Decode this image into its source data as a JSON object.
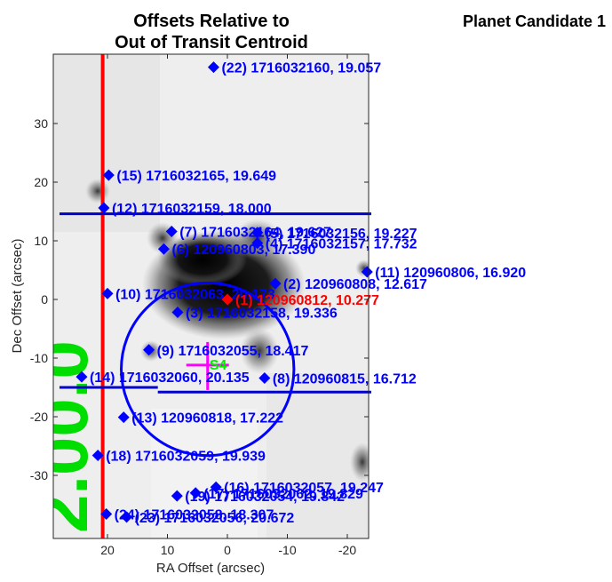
{
  "figure": {
    "title_line1": "Offsets Relative to",
    "title_line2": "Out of Transit Centroid",
    "candidate_label": "Planet Candidate 1"
  },
  "chart_data": {
    "type": "scatter",
    "title": "Offsets Relative to Out of Transit Centroid",
    "xlabel": "RA Offset (arcsec)",
    "ylabel": "Dec Offset (arcsec)",
    "xlim": [
      28,
      -24
    ],
    "ylim": [
      -40,
      40
    ],
    "x_reversed": true,
    "x_ticks": [
      20,
      10,
      0,
      -10,
      -20
    ],
    "x_tick_labels": [
      "20",
      "10",
      "0",
      "-10",
      "-20"
    ],
    "y_ticks": [
      30,
      20,
      10,
      0,
      -10,
      -20,
      -30
    ],
    "y_tick_labels": [
      "30",
      "20",
      "10",
      "0",
      "-10",
      "-20",
      "-30"
    ],
    "background": "grayscale sky image",
    "colors": {
      "stars": "#0000ff",
      "target": "#ff0000",
      "marker": "#ff00ff",
      "crosshair_label": "#00ee00",
      "red_line": "#ff0000",
      "blue_lines": "#0000cc"
    },
    "stars": [
      {
        "label": "(22) 1716032160, 19.057",
        "x": 2.3,
        "y": 39.6,
        "color": "#0000ff"
      },
      {
        "label": "(15) 1716032165, 19.649",
        "x": 19.8,
        "y": 21.2,
        "color": "#0000ff"
      },
      {
        "label": "(12) 1716032159, 18.000",
        "x": 20.6,
        "y": 15.6,
        "color": "#0000ff"
      },
      {
        "label": "(7) 1716032164, 19.627",
        "x": 9.3,
        "y": 11.6,
        "color": "#0000ff"
      },
      {
        "label": "(5) 1716032156, 19.227",
        "x": -5.0,
        "y": 11.4,
        "color": "#0000ff"
      },
      {
        "label": "(4) 1716032157, 17.732",
        "x": -5.0,
        "y": 9.6,
        "color": "#0000ff"
      },
      {
        "label": "(6) 120960803, 17.390",
        "x": 10.6,
        "y": 8.6,
        "color": "#0000ff"
      },
      {
        "label": "(11) 120960806, 16.920",
        "x": -23.3,
        "y": 4.7,
        "color": "#0000ff"
      },
      {
        "label": "(2) 120960808, 12.617",
        "x": -8.0,
        "y": 2.7,
        "color": "#0000ff"
      },
      {
        "label": "(10) 1716032063, 20.173",
        "x": 20.0,
        "y": 1.0,
        "color": "#0000ff"
      },
      {
        "label": "(1) 120960812, 10.277",
        "x": 0.0,
        "y": 0.0,
        "color": "#ff0000"
      },
      {
        "label": "(3) 1716032158, 19.336",
        "x": 8.3,
        "y": -2.2,
        "color": "#0000ff"
      },
      {
        "label": "(9) 1716032055, 18.417",
        "x": 13.1,
        "y": -8.6,
        "color": "#0000ff"
      },
      {
        "label": "(8) 120960815, 16.712",
        "x": -6.2,
        "y": -13.4,
        "color": "#0000ff"
      },
      {
        "label": "(14) 1716032060, 20.135",
        "x": 24.3,
        "y": -13.2,
        "color": "#0000ff"
      },
      {
        "label": "(13) 120960818, 17.222",
        "x": 17.3,
        "y": -20.1,
        "color": "#0000ff"
      },
      {
        "label": "(18) 1716032059, 19.939",
        "x": 21.6,
        "y": -26.6,
        "color": "#0000ff"
      },
      {
        "label": "(16) 1716032057, 19.247",
        "x": 1.9,
        "y": -32.0,
        "color": "#0000ff"
      },
      {
        "label": "(17) 1716032062, 19.829",
        "x": 5.3,
        "y": -33.0,
        "color": "#0000ff"
      },
      {
        "label": "(19) 1716032054, 19.842",
        "x": 8.4,
        "y": -33.5,
        "color": "#0000ff"
      },
      {
        "label": "(24) 1716032058, 18.307",
        "x": 20.2,
        "y": -36.6,
        "color": "#0000ff"
      },
      {
        "label": "(23) 1716032056, 20.672",
        "x": 16.8,
        "y": -37.1,
        "color": "#0000ff"
      }
    ],
    "centroid_marker": {
      "x": 3.3,
      "y": -11.2,
      "label": "S4",
      "color": "#ff00ff",
      "label_color": "#00ee00"
    },
    "uncertainty_circle": {
      "x": 3.3,
      "y": -11.9,
      "radius": 14.4,
      "color": "#0000ff"
    },
    "vertical_line": {
      "x": 20.8,
      "color": "#ff0000"
    },
    "horizontal_lines": [
      {
        "y": 14.6,
        "x_from": 28,
        "x_to": -24,
        "color": "#0000cc"
      },
      {
        "y": -15.0,
        "x_from": 28,
        "x_to": 11.6,
        "color": "#0000cc"
      },
      {
        "y": -15.8,
        "x_from": 11.6,
        "x_to": -24,
        "color": "#0000cc"
      }
    ],
    "aperture_text": "2.00.0",
    "aperture_text_color": "#00dd00"
  }
}
